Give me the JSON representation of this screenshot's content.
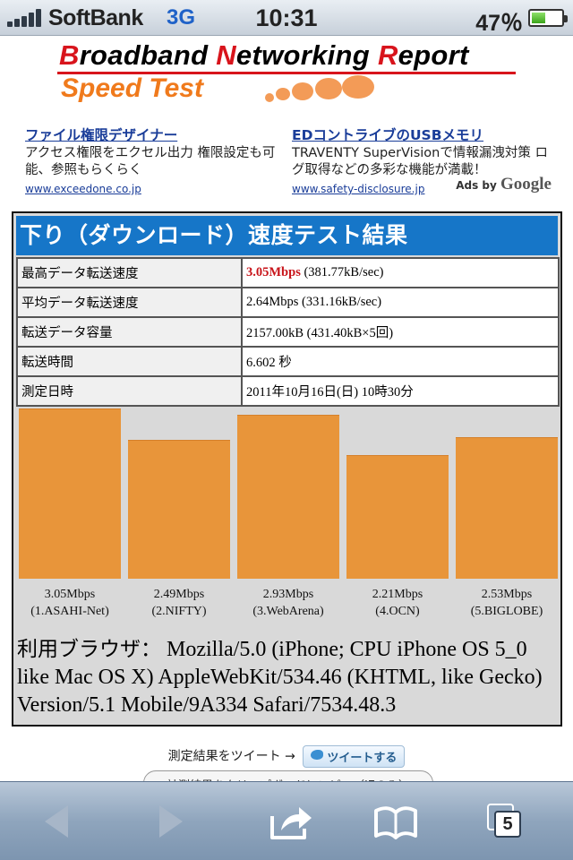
{
  "status": {
    "carrier": "SoftBank",
    "network": "3G",
    "time": "10:31",
    "battery": "47％",
    "battery_level": 0.47
  },
  "logo": {
    "line1_caps": [
      "B",
      "N",
      "R"
    ],
    "line1_rest": [
      "roadband ",
      "etworking ",
      "eport"
    ],
    "line2": "Speed Test"
  },
  "ads": [
    {
      "title": "ファイル権限デザイナー",
      "text": "アクセス権限をエクセル出力 権限設定も可能、参照もらくらく",
      "url": "www.exceedone.co.jp"
    },
    {
      "title": "EDコントライブのUSBメモリ",
      "text": "TRAVENTY SuperVisionで情報漏洩対策 ログ取得などの多彩な機能が満載！",
      "url": "www.safety-disclosure.jp"
    }
  ],
  "ads_by": {
    "prefix": "Ads by",
    "brand": "Google"
  },
  "result": {
    "title": "下り（ダウンロード）速度テスト結果",
    "rows": [
      {
        "key": "最高データ転送速度",
        "highlight": "3.05Mbps",
        "value": " (381.77kB/sec)"
      },
      {
        "key": "平均データ転送速度",
        "highlight": "",
        "value": "2.64Mbps (331.16kB/sec)"
      },
      {
        "key": "転送データ容量",
        "highlight": "",
        "value": "2157.00kB (431.40kB×5回)"
      },
      {
        "key": "転送時間",
        "highlight": "",
        "value": "6.602 秒"
      },
      {
        "key": "測定日時",
        "highlight": "",
        "value": "2011年10月16日(日) 10時30分"
      }
    ],
    "browser_label": "利用ブラウザ：",
    "browser_value": " Mozilla/5.0 (iPhone; CPU iPhone OS 5_0 like Mac OS X) AppleWebKit/534.46 (KHTML, like Gecko) Version/5.1 Mobile/9A334 Safari/7534.48.3"
  },
  "chart_data": {
    "type": "bar",
    "categories": [
      "(1.ASAHI-Net)",
      "(2.NIFTY)",
      "(3.WebArena)",
      "(4.OCN)",
      "(5.BIGLOBE)"
    ],
    "values": [
      3.05,
      2.49,
      2.93,
      2.21,
      2.53
    ],
    "value_labels": [
      "3.05Mbps",
      "2.49Mbps",
      "2.93Mbps",
      "2.21Mbps",
      "2.53Mbps"
    ],
    "unit": "Mbps",
    "title": "",
    "xlabel": "",
    "ylabel": "",
    "bar_color": "#e8953a"
  },
  "tweet": {
    "text": "測定結果をツイート →",
    "button": "ツイートする"
  },
  "clipboard": {
    "text": "計測結果をクリップボードにコピー（IEのみ）"
  },
  "toolbar": {
    "tabs_count": "5"
  },
  "colors": {
    "header_blue": "#1676c8",
    "highlight_red": "#c8141a",
    "logo_red": "#d8141c",
    "logo_orange": "#f07a1c"
  }
}
